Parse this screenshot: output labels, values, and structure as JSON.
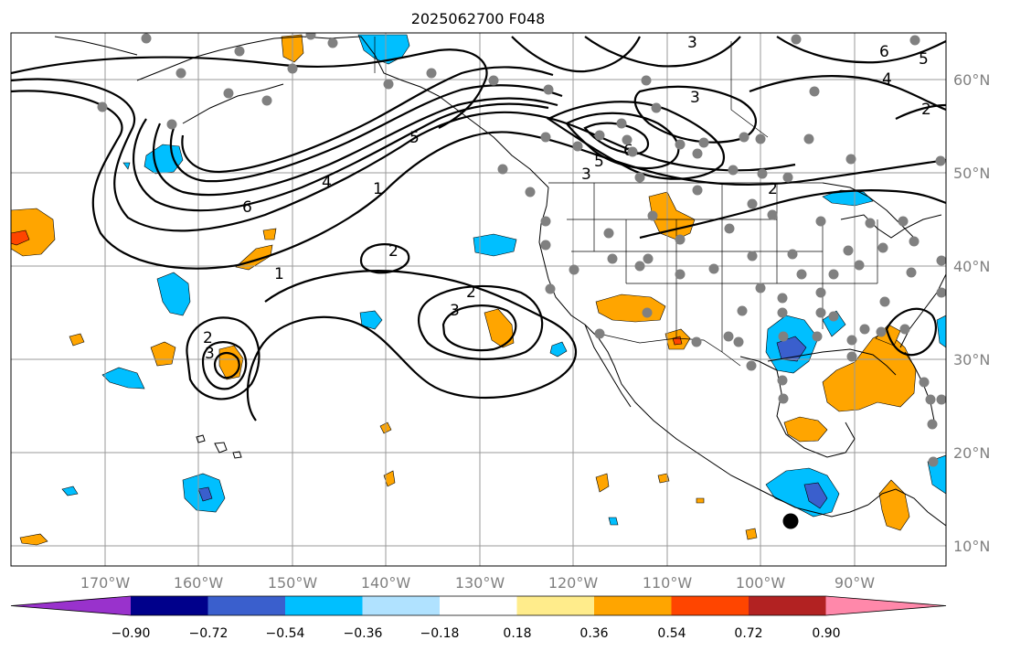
{
  "title": "2025062700 F048",
  "lon_labels": [
    "170°W",
    "160°W",
    "150°W",
    "140°W",
    "130°W",
    "120°W",
    "110°W",
    "100°W",
    "90°W"
  ],
  "lat_labels": [
    "60°N",
    "50°N",
    "40°N",
    "30°N",
    "20°N",
    "10°N"
  ],
  "contour_labels": [
    "1",
    "2",
    "3",
    "4",
    "5",
    "6"
  ],
  "colorbar": {
    "ticks": [
      "−0.90",
      "−0.72",
      "−0.54",
      "−0.36",
      "−0.18",
      "0.18",
      "0.36",
      "0.54",
      "0.72",
      "0.90"
    ],
    "colors": [
      "#9932cc",
      "#00008b",
      "#3a5fcd",
      "#00bfff",
      "#b0e2ff",
      "#ffffff",
      "#ffec8b",
      "#ffa500",
      "#ff4500",
      "#b22222",
      "#ff88aa"
    ]
  }
}
